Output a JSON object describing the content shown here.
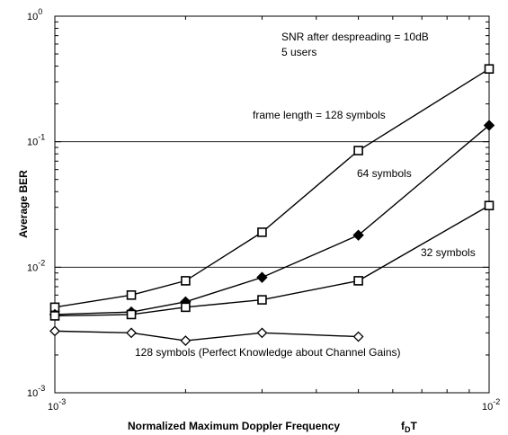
{
  "chart_data": {
    "type": "line",
    "xscale": "log",
    "yscale": "log",
    "xlim": [
      0.001,
      0.01
    ],
    "ylim": [
      0.001,
      1
    ],
    "grid": "horizontal at 10^-2 and 10^-1",
    "xlabel_main": "Normalized Maximum Doppler Frequency",
    "xlabel_math": {
      "base": "f",
      "sub": "D",
      "tail": "T"
    },
    "ylabel": "Average BER",
    "x_ticks": [
      {
        "base": "10",
        "exp": "-3"
      },
      {
        "base": "10",
        "exp": "-2"
      }
    ],
    "y_ticks": [
      {
        "base": "10",
        "exp": "0"
      },
      {
        "base": "10",
        "exp": "-1"
      },
      {
        "base": "10",
        "exp": "-2"
      },
      {
        "base": "10",
        "exp": "-3"
      }
    ],
    "annotations": {
      "snr": "SNR after despreading = 10dB",
      "users": "5 users",
      "s128": "frame length = 128 symbols",
      "s64": "64 symbols",
      "s32": "32 symbols",
      "perfect": "128 symbols (Perfect Knowledge about Channel Gains)"
    },
    "series": [
      {
        "key": "s128",
        "marker": "open-square",
        "x": [
          0.001,
          0.0015,
          0.002,
          0.003,
          0.005,
          0.01
        ],
        "y": [
          0.0048,
          0.006,
          0.0078,
          0.019,
          0.085,
          0.38
        ]
      },
      {
        "key": "s64",
        "marker": "filled-diamond",
        "x": [
          0.001,
          0.0015,
          0.002,
          0.003,
          0.005,
          0.01
        ],
        "y": [
          0.0042,
          0.0044,
          0.0053,
          0.0083,
          0.018,
          0.135
        ]
      },
      {
        "key": "s32",
        "marker": "open-square",
        "x": [
          0.001,
          0.0015,
          0.002,
          0.003,
          0.005,
          0.01
        ],
        "y": [
          0.0041,
          0.0042,
          0.0048,
          0.0055,
          0.0078,
          0.031
        ]
      },
      {
        "key": "perfect",
        "marker": "open-diamond",
        "x": [
          0.001,
          0.0015,
          0.002,
          0.003,
          0.005
        ],
        "y": [
          0.0031,
          0.003,
          0.0026,
          0.003,
          0.0028
        ]
      }
    ]
  }
}
